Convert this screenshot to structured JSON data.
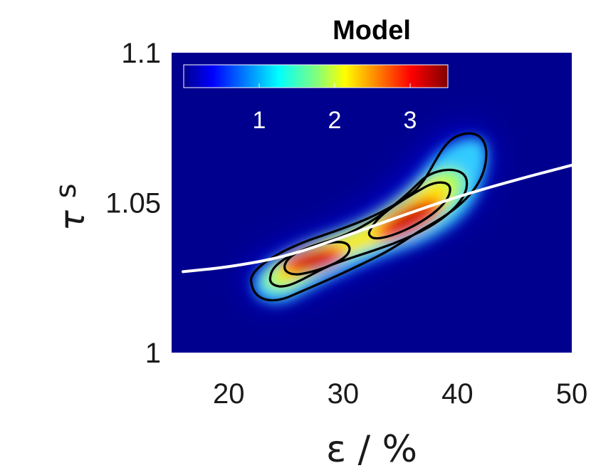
{
  "chart_data": {
    "type": "heatmap",
    "title": "Model",
    "xlabel": "ε / %",
    "ylabel": "τ",
    "ylabel_sub": "s",
    "xlim": [
      15,
      50
    ],
    "ylim": [
      1.0,
      1.1
    ],
    "x_ticks": [
      20,
      30,
      40,
      50
    ],
    "x_tick_labels": [
      "20",
      "30",
      "40",
      "50"
    ],
    "y_ticks": [
      1.0,
      1.05,
      1.1
    ],
    "y_tick_labels": [
      "1",
      "1.05",
      "1.1"
    ],
    "colormap": "jet",
    "colorbar": {
      "placement": "top-left, inside axes",
      "range": [
        0,
        3.5
      ],
      "ticks": [
        1,
        2,
        3
      ],
      "tick_labels": [
        "1",
        "2",
        "3"
      ]
    },
    "density_peaks": [
      {
        "x": 28,
        "y": 1.031,
        "value": 3.4
      },
      {
        "x": 37,
        "y": 1.046,
        "value": 3.4
      }
    ],
    "contour_levels": [
      0.8,
      1.7,
      2.6
    ],
    "fit_curve": {
      "color": "#ffffff",
      "x": [
        16,
        20,
        25,
        30,
        35,
        40,
        45,
        50
      ],
      "y": [
        1.027,
        1.0285,
        1.032,
        1.0385,
        1.0455,
        1.052,
        1.0575,
        1.0625
      ]
    },
    "colors": {
      "background": "#00008f",
      "fit_curve": "#ffffff",
      "contour": "#000000"
    }
  }
}
